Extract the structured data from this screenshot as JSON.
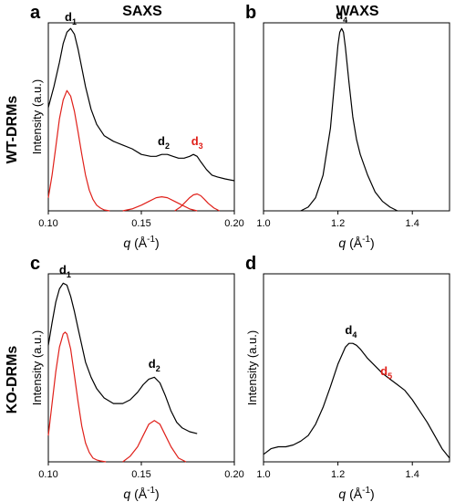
{
  "figure": {
    "column_titles": [
      "SAXS",
      "WAXS"
    ],
    "row_labels": [
      "WT-DRMs",
      "KO-DRMs"
    ],
    "colors": {
      "measured": "#000000",
      "fit": "#e0201a",
      "label_red": "#e0201a"
    }
  },
  "chart_data": [
    {
      "panel": "a",
      "type": "line",
      "xlabel_var": "q",
      "xlabel_unit": "(Å",
      "xlabel_exp": "-1",
      "xlabel_close": ")",
      "ylabel": "Intensity (a.u.)",
      "xlim": [
        0.1,
        0.2
      ],
      "xticks": [
        0.1,
        0.15,
        0.2
      ],
      "xtick_labels": [
        "0.10",
        "0.15",
        "0.20"
      ],
      "ylim": [
        0,
        1
      ],
      "series": [
        {
          "role": "measured",
          "x": [
            0.1,
            0.103,
            0.106,
            0.108,
            0.11,
            0.112,
            0.114,
            0.116,
            0.118,
            0.12,
            0.123,
            0.126,
            0.13,
            0.135,
            0.14,
            0.145,
            0.15,
            0.155,
            0.158,
            0.161,
            0.164,
            0.167,
            0.17,
            0.173,
            0.176,
            0.178,
            0.18,
            0.182,
            0.185,
            0.188,
            0.191,
            0.195,
            0.2
          ],
          "y": [
            0.55,
            0.66,
            0.79,
            0.89,
            0.95,
            0.97,
            0.94,
            0.86,
            0.76,
            0.66,
            0.54,
            0.46,
            0.4,
            0.37,
            0.35,
            0.33,
            0.3,
            0.29,
            0.29,
            0.3,
            0.3,
            0.29,
            0.28,
            0.28,
            0.29,
            0.3,
            0.29,
            0.26,
            0.22,
            0.19,
            0.18,
            0.17,
            0.16
          ]
        },
        {
          "role": "fit",
          "x": [
            0.1,
            0.102,
            0.104,
            0.106,
            0.108,
            0.11,
            0.112,
            0.114,
            0.116,
            0.118,
            0.12,
            0.122,
            0.124,
            0.126,
            0.128,
            0.13,
            0.133
          ],
          "y": [
            0.07,
            0.19,
            0.34,
            0.49,
            0.59,
            0.64,
            0.61,
            0.53,
            0.42,
            0.3,
            0.19,
            0.11,
            0.06,
            0.03,
            0.015,
            0.005,
            0.0
          ]
        },
        {
          "role": "fit",
          "x": [
            0.14,
            0.145,
            0.15,
            0.154,
            0.158,
            0.161,
            0.164,
            0.168,
            0.172,
            0.176,
            0.18
          ],
          "y": [
            0.0,
            0.01,
            0.03,
            0.05,
            0.07,
            0.075,
            0.07,
            0.05,
            0.03,
            0.01,
            0.0
          ]
        },
        {
          "role": "fit",
          "x": [
            0.168,
            0.171,
            0.174,
            0.176,
            0.178,
            0.18,
            0.182,
            0.184,
            0.186,
            0.189,
            0.192
          ],
          "y": [
            0.0,
            0.02,
            0.05,
            0.07,
            0.085,
            0.09,
            0.08,
            0.06,
            0.04,
            0.015,
            0.0
          ]
        }
      ],
      "annotations": [
        {
          "base": "d",
          "sub": "1",
          "x": 0.112,
          "y": 1.01,
          "color": "#000000"
        },
        {
          "base": "d",
          "sub": "2",
          "x": 0.162,
          "y": 0.35,
          "color": "#000000"
        },
        {
          "base": "d",
          "sub": "3",
          "x": 0.18,
          "y": 0.35,
          "color": "#e0201a"
        }
      ]
    },
    {
      "panel": "b",
      "type": "line",
      "xlabel_var": "q",
      "xlabel_unit": "(Å",
      "xlabel_exp": "-1",
      "xlabel_close": ")",
      "ylabel": "",
      "xlim": [
        1.0,
        1.5
      ],
      "xticks": [
        1.0,
        1.2,
        1.4
      ],
      "xtick_labels": [
        "1.0",
        "1.2",
        "1.4"
      ],
      "ylim": [
        0,
        1
      ],
      "series": [
        {
          "role": "measured",
          "x": [
            1.1,
            1.12,
            1.14,
            1.16,
            1.18,
            1.19,
            1.2,
            1.205,
            1.21,
            1.215,
            1.22,
            1.23,
            1.24,
            1.25,
            1.26,
            1.28,
            1.3,
            1.32,
            1.34,
            1.36
          ],
          "y": [
            0.0,
            0.02,
            0.07,
            0.19,
            0.44,
            0.66,
            0.88,
            0.95,
            0.97,
            0.95,
            0.87,
            0.68,
            0.5,
            0.38,
            0.3,
            0.19,
            0.1,
            0.05,
            0.02,
            0.0
          ]
        }
      ],
      "annotations": [
        {
          "base": "d",
          "sub": "4",
          "x": 1.21,
          "y": 1.02,
          "color": "#000000"
        }
      ]
    },
    {
      "panel": "c",
      "type": "line",
      "xlabel_var": "q",
      "xlabel_unit": "(Å",
      "xlabel_exp": "-1",
      "xlabel_close": ")",
      "ylabel": "Intensity (a.u.)",
      "xlim": [
        0.1,
        0.2
      ],
      "xticks": [
        0.1,
        0.15,
        0.2
      ],
      "xtick_labels": [
        "0.10",
        "0.15",
        "0.20"
      ],
      "ylim": [
        0,
        1
      ],
      "series": [
        {
          "role": "measured",
          "x": [
            0.1,
            0.102,
            0.104,
            0.106,
            0.108,
            0.11,
            0.112,
            0.114,
            0.116,
            0.118,
            0.12,
            0.123,
            0.126,
            0.13,
            0.135,
            0.14,
            0.144,
            0.148,
            0.151,
            0.154,
            0.157,
            0.16,
            0.163,
            0.166,
            0.169,
            0.172,
            0.176,
            0.18
          ],
          "y": [
            0.62,
            0.74,
            0.85,
            0.92,
            0.95,
            0.94,
            0.88,
            0.8,
            0.71,
            0.62,
            0.53,
            0.45,
            0.39,
            0.34,
            0.31,
            0.31,
            0.33,
            0.37,
            0.41,
            0.44,
            0.45,
            0.42,
            0.35,
            0.27,
            0.21,
            0.18,
            0.16,
            0.15
          ]
        },
        {
          "role": "fit",
          "x": [
            0.1,
            0.102,
            0.104,
            0.106,
            0.108,
            0.109,
            0.11,
            0.112,
            0.114,
            0.116,
            0.118,
            0.12,
            0.122,
            0.124,
            0.126,
            0.128,
            0.131
          ],
          "y": [
            0.14,
            0.31,
            0.48,
            0.61,
            0.68,
            0.69,
            0.68,
            0.6,
            0.46,
            0.32,
            0.19,
            0.1,
            0.05,
            0.02,
            0.01,
            0.005,
            0.0
          ]
        },
        {
          "role": "fit",
          "x": [
            0.14,
            0.144,
            0.148,
            0.151,
            0.154,
            0.157,
            0.16,
            0.163,
            0.166,
            0.17,
            0.174
          ],
          "y": [
            0.0,
            0.03,
            0.08,
            0.14,
            0.2,
            0.22,
            0.2,
            0.14,
            0.08,
            0.02,
            0.0
          ]
        }
      ],
      "annotations": [
        {
          "base": "d",
          "sub": "1",
          "x": 0.109,
          "y": 1.0,
          "color": "#000000"
        },
        {
          "base": "d",
          "sub": "2",
          "x": 0.157,
          "y": 0.5,
          "color": "#000000"
        }
      ]
    },
    {
      "panel": "d",
      "type": "line",
      "xlabel_var": "q",
      "xlabel_unit": "(Å",
      "xlabel_exp": "-1",
      "xlabel_close": ")",
      "ylabel": "Intensity (a.u.)",
      "xlim": [
        1.0,
        1.5
      ],
      "xticks": [
        1.0,
        1.2,
        1.4
      ],
      "xtick_labels": [
        "1.0",
        "1.2",
        "1.4"
      ],
      "ylim": [
        0,
        1
      ],
      "series": [
        {
          "role": "measured",
          "x": [
            1.0,
            1.02,
            1.04,
            1.06,
            1.08,
            1.1,
            1.12,
            1.14,
            1.16,
            1.18,
            1.2,
            1.22,
            1.23,
            1.24,
            1.25,
            1.26,
            1.28,
            1.3,
            1.32,
            1.34,
            1.36,
            1.38,
            1.4,
            1.42,
            1.44,
            1.46,
            1.48,
            1.5
          ],
          "y": [
            0.04,
            0.07,
            0.08,
            0.08,
            0.09,
            0.11,
            0.14,
            0.2,
            0.29,
            0.4,
            0.52,
            0.61,
            0.63,
            0.63,
            0.62,
            0.6,
            0.55,
            0.51,
            0.47,
            0.44,
            0.41,
            0.38,
            0.33,
            0.27,
            0.21,
            0.14,
            0.07,
            0.02
          ]
        }
      ],
      "annotations": [
        {
          "base": "d",
          "sub": "4",
          "x": 1.235,
          "y": 0.68,
          "color": "#000000"
        },
        {
          "base": "d",
          "sub": "5",
          "x": 1.33,
          "y": 0.46,
          "color": "#e0201a"
        }
      ]
    }
  ]
}
